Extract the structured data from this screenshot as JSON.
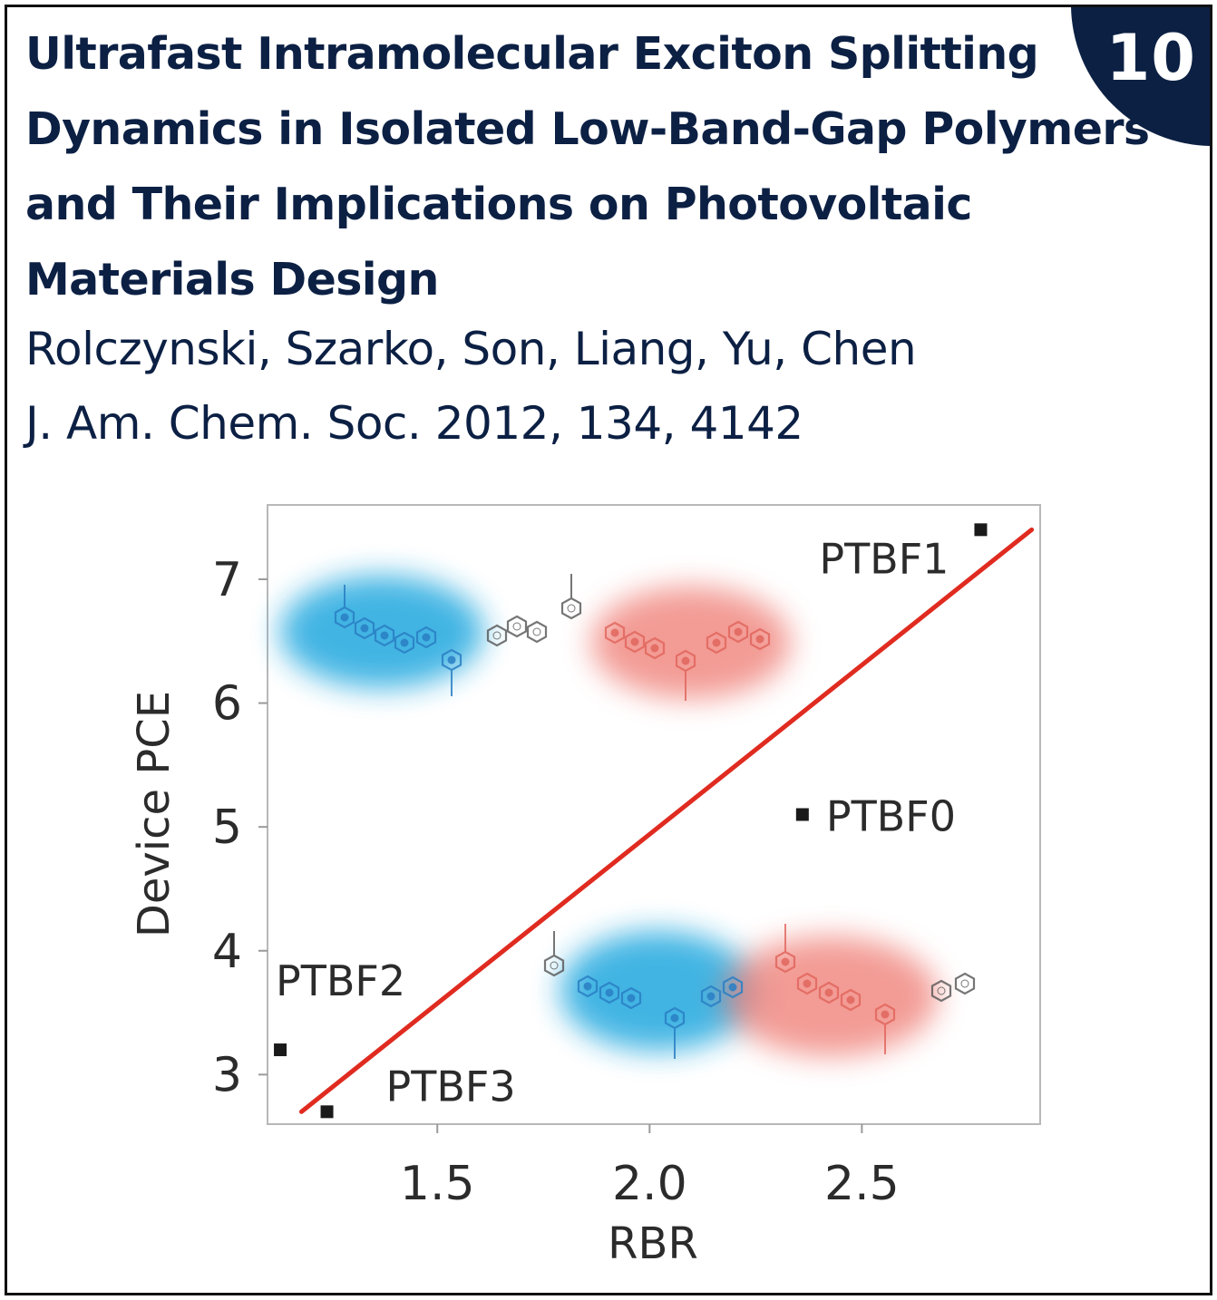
{
  "badge": {
    "number": "10"
  },
  "paper": {
    "title": "Ultrafast Intramolecular Exciton Splitting Dynamics in Isolated Low-Band-Gap Polymers and Their Implications on Photovoltaic Materials Design",
    "authors": "Rolczynski, Szarko, Son, Liang, Yu, Chen",
    "citation": "J. Am. Chem. Soc. 2012, 134, 4142"
  },
  "colors": {
    "navy": "#0c2044",
    "fit_line": "#e02b20",
    "blue_glow": "#21a8df",
    "red_glow": "#ef7a72"
  },
  "chart_data": {
    "type": "scatter",
    "title": "",
    "xlabel": "RBR",
    "ylabel": "Device PCE",
    "xlim": [
      1.1,
      2.92
    ],
    "ylim": [
      2.6,
      7.6
    ],
    "xticks": [
      "1.5",
      "2.0",
      "2.5"
    ],
    "yticks": [
      "3",
      "4",
      "5",
      "6",
      "7"
    ],
    "grid": false,
    "points": [
      {
        "label": "PTBF1",
        "x": 2.78,
        "y": 7.4
      },
      {
        "label": "PTBF0",
        "x": 2.36,
        "y": 5.1
      },
      {
        "label": "PTBF2",
        "x": 1.13,
        "y": 3.2
      },
      {
        "label": "PTBF3",
        "x": 1.24,
        "y": 2.7
      }
    ],
    "fit_line": {
      "x": [
        1.18,
        2.9
      ],
      "y": [
        2.7,
        7.4
      ]
    },
    "insets": [
      {
        "icon": "polymer-structure-icon",
        "highlight": "blue-left-red-right"
      },
      {
        "icon": "polymer-structure-icon",
        "highlight": "blue-left-red-right"
      }
    ]
  }
}
